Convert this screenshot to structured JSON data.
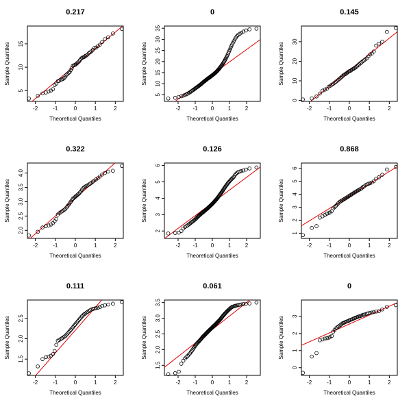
{
  "chart_data": [
    {
      "type": "scatter",
      "title": "0.217",
      "xlabel": "Theoretical Quantiles",
      "ylabel": "Sample Quantiles",
      "xlim": [
        -2.4,
        2.4
      ],
      "ylim": [
        2.7,
        18.8
      ],
      "xticks": [
        -2,
        -1,
        0,
        1,
        2
      ],
      "yticks": [
        5,
        10,
        15
      ],
      "n": 50,
      "sample_quantiles": [
        3.3,
        3.9,
        4.4,
        4.6,
        4.8,
        5.0,
        5.3,
        6.2,
        6.5,
        7.0,
        7.1,
        7.3,
        7.4,
        7.5,
        7.7,
        8.0,
        8.4,
        8.6,
        8.8,
        9.0,
        9.4,
        9.8,
        10.3,
        10.4,
        10.5,
        10.6,
        10.8,
        11.0,
        11.2,
        11.5,
        11.8,
        12.0,
        12.1,
        12.2,
        12.4,
        12.5,
        12.7,
        13.0,
        13.2,
        13.4,
        13.7,
        14.1,
        14.2,
        14.5,
        14.8,
        15.4,
        16.0,
        16.4,
        17.2,
        18.2
      ],
      "qqline": {
        "intercept": 10.4,
        "slope": 3.55
      }
    },
    {
      "type": "scatter",
      "title": "0",
      "xlabel": "Theoretical Quantiles",
      "ylabel": "Sample Quantiles",
      "xlim": [
        -2.8,
        2.8
      ],
      "ylim": [
        2,
        36
      ],
      "xticks": [
        -2,
        -1,
        0,
        1,
        2
      ],
      "yticks": [
        5,
        10,
        15,
        20,
        25,
        30,
        35
      ],
      "n": 100,
      "sample_quantiles": [
        3.3,
        3.6,
        4.0,
        4.3,
        4.6,
        4.9,
        5.2,
        5.5,
        5.8,
        6.1,
        6.4,
        6.7,
        7.0,
        7.2,
        7.5,
        7.7,
        8.0,
        8.2,
        8.4,
        8.6,
        8.8,
        9.0,
        9.2,
        9.4,
        9.6,
        9.8,
        10.0,
        10.2,
        10.4,
        10.6,
        10.8,
        11.0,
        11.1,
        11.3,
        11.5,
        11.6,
        11.8,
        12.0,
        12.1,
        12.3,
        12.4,
        12.6,
        12.7,
        12.8,
        13.0,
        13.1,
        13.3,
        13.4,
        13.6,
        13.7,
        13.9,
        14.0,
        14.2,
        14.3,
        14.5,
        14.7,
        14.8,
        15.0,
        15.2,
        15.4,
        15.6,
        15.8,
        16.0,
        16.3,
        16.5,
        16.8,
        17.0,
        17.3,
        17.6,
        17.9,
        18.2,
        18.5,
        18.8,
        19.2,
        19.6,
        20.0,
        20.4,
        20.9,
        21.4,
        21.9,
        22.5,
        23.1,
        23.8,
        24.5,
        25.2,
        26.0,
        26.8,
        27.6,
        28.4,
        29.2,
        30.0,
        30.8,
        31.5,
        32.0,
        32.5,
        33.0,
        33.5,
        34.0,
        34.5,
        34.8
      ],
      "qqline": {
        "intercept": 14.2,
        "slope": 5.6
      }
    },
    {
      "type": "scatter",
      "title": "0.145",
      "xlabel": "Theoretical Quantiles",
      "ylabel": "Sample Quantiles",
      "xlim": [
        -2.4,
        2.4
      ],
      "ylim": [
        -0.5,
        38
      ],
      "xticks": [
        -2,
        -1,
        0,
        1,
        2
      ],
      "yticks": [
        0,
        10,
        20,
        30
      ],
      "n": 50,
      "sample_quantiles": [
        0.5,
        1.0,
        2.0,
        3.5,
        5.0,
        5.5,
        6.0,
        7.0,
        7.5,
        8.0,
        8.5,
        9.0,
        9.5,
        10.0,
        10.5,
        11.0,
        11.5,
        12.0,
        12.5,
        13.0,
        13.3,
        13.6,
        14.0,
        14.4,
        14.8,
        15.0,
        15.3,
        15.7,
        16.0,
        16.3,
        16.6,
        17.0,
        17.5,
        18.0,
        18.5,
        19.0,
        19.5,
        20.0,
        20.5,
        21.0,
        21.5,
        22.5,
        23.5,
        24.0,
        25.0,
        28.0,
        29.0,
        30.0,
        35.0,
        37.0
      ],
      "qqline": {
        "intercept": 15.4,
        "slope": 8.2
      }
    },
    {
      "type": "scatter",
      "title": "0.322",
      "xlabel": "Theoretical Quantiles",
      "ylabel": "Sample Quantiles",
      "xlim": [
        -2.4,
        2.4
      ],
      "ylim": [
        1.72,
        4.35
      ],
      "xticks": [
        -2,
        -1,
        0,
        1,
        2
      ],
      "yticks": [
        2.0,
        2.5,
        3.0,
        3.5,
        4.0
      ],
      "n": 50,
      "sample_quantiles": [
        1.82,
        1.95,
        2.1,
        2.15,
        2.17,
        2.2,
        2.25,
        2.32,
        2.4,
        2.55,
        2.6,
        2.63,
        2.66,
        2.69,
        2.72,
        2.75,
        2.8,
        2.85,
        2.9,
        2.95,
        3.0,
        3.05,
        3.1,
        3.13,
        3.16,
        3.19,
        3.22,
        3.25,
        3.28,
        3.32,
        3.36,
        3.42,
        3.47,
        3.5,
        3.53,
        3.55,
        3.57,
        3.6,
        3.63,
        3.66,
        3.7,
        3.74,
        3.78,
        3.82,
        3.88,
        3.95,
        4.0,
        4.05,
        4.08,
        4.25
      ],
      "qqline": {
        "intercept": 3.12,
        "slope": 0.62
      }
    },
    {
      "type": "scatter",
      "title": "0.126",
      "xlabel": "Theoretical Quantiles",
      "ylabel": "Sample Quantiles",
      "xlim": [
        -2.8,
        2.8
      ],
      "ylim": [
        1.55,
        6.15
      ],
      "xticks": [
        -2,
        -1,
        0,
        1,
        2
      ],
      "yticks": [
        2,
        3,
        4,
        5,
        6
      ],
      "n": 100,
      "sample_quantiles": [
        1.85,
        1.88,
        1.9,
        2.0,
        2.15,
        2.25,
        2.3,
        2.35,
        2.4,
        2.45,
        2.5,
        2.55,
        2.58,
        2.62,
        2.66,
        2.7,
        2.74,
        2.78,
        2.82,
        2.86,
        2.9,
        2.93,
        2.96,
        2.99,
        3.02,
        3.05,
        3.08,
        3.1,
        3.13,
        3.15,
        3.18,
        3.2,
        3.23,
        3.25,
        3.28,
        3.3,
        3.32,
        3.35,
        3.37,
        3.4,
        3.42,
        3.45,
        3.47,
        3.5,
        3.52,
        3.55,
        3.57,
        3.6,
        3.62,
        3.65,
        3.67,
        3.7,
        3.73,
        3.76,
        3.79,
        3.82,
        3.85,
        3.88,
        3.91,
        3.94,
        3.97,
        4.0,
        4.04,
        4.08,
        4.12,
        4.16,
        4.2,
        4.24,
        4.28,
        4.32,
        4.36,
        4.4,
        4.45,
        4.5,
        4.55,
        4.6,
        4.65,
        4.7,
        4.75,
        4.8,
        4.85,
        4.9,
        4.95,
        5.0,
        5.05,
        5.1,
        5.15,
        5.2,
        5.25,
        5.3,
        5.4,
        5.48,
        5.55,
        5.6,
        5.63,
        5.66,
        5.7,
        5.75,
        5.82,
        5.88
      ],
      "qqline": {
        "intercept": 3.72,
        "slope": 0.78
      }
    },
    {
      "type": "scatter",
      "title": "0.868",
      "xlabel": "Theoretical Quantiles",
      "ylabel": "Sample Quantiles",
      "xlim": [
        -2.4,
        2.4
      ],
      "ylim": [
        0.6,
        6.4
      ],
      "xticks": [
        -2,
        -1,
        0,
        1,
        2
      ],
      "yticks": [
        1,
        2,
        3,
        4,
        5,
        6
      ],
      "n": 50,
      "sample_quantiles": [
        0.85,
        1.4,
        1.55,
        2.2,
        2.3,
        2.4,
        2.5,
        2.55,
        2.6,
        2.7,
        2.9,
        3.0,
        3.1,
        3.2,
        3.3,
        3.4,
        3.45,
        3.5,
        3.55,
        3.6,
        3.65,
        3.7,
        3.75,
        3.8,
        3.85,
        3.9,
        3.95,
        4.0,
        4.05,
        4.1,
        4.15,
        4.2,
        4.25,
        4.3,
        4.35,
        4.4,
        4.45,
        4.55,
        4.6,
        4.7,
        4.75,
        4.8,
        4.85,
        4.9,
        5.0,
        5.2,
        5.3,
        5.5,
        5.9,
        6.1
      ],
      "qqline": {
        "intercept": 3.85,
        "slope": 0.95
      }
    },
    {
      "type": "scatter",
      "title": "0.111",
      "xlabel": "Theoretical Quantiles",
      "ylabel": "Sample Quantiles",
      "xlim": [
        -2.4,
        2.4
      ],
      "ylim": [
        1.1,
        2.95
      ],
      "xticks": [
        -2,
        -1,
        0,
        1,
        2
      ],
      "yticks": [
        1.5,
        2.0,
        2.5
      ],
      "n": 50,
      "sample_quantiles": [
        1.15,
        1.32,
        1.5,
        1.55,
        1.56,
        1.58,
        1.62,
        1.7,
        1.85,
        1.95,
        1.97,
        1.99,
        2.01,
        2.03,
        2.05,
        2.07,
        2.1,
        2.13,
        2.16,
        2.19,
        2.22,
        2.25,
        2.28,
        2.31,
        2.34,
        2.37,
        2.4,
        2.43,
        2.46,
        2.49,
        2.52,
        2.55,
        2.58,
        2.6,
        2.62,
        2.64,
        2.66,
        2.68,
        2.7,
        2.72,
        2.73,
        2.74,
        2.75,
        2.76,
        2.78,
        2.8,
        2.82,
        2.84,
        2.86,
        2.9
      ],
      "qqline": {
        "intercept": 2.21,
        "slope": 0.56
      }
    },
    {
      "type": "scatter",
      "title": "0.061",
      "xlabel": "Theoretical Quantiles",
      "ylabel": "Sample Quantiles",
      "xlim": [
        -2.8,
        2.8
      ],
      "ylim": [
        1.18,
        3.58
      ],
      "xticks": [
        -2,
        -1,
        0,
        1,
        2
      ],
      "yticks": [
        1.5,
        2.0,
        2.5,
        3.0,
        3.5
      ],
      "n": 100,
      "sample_quantiles": [
        1.22,
        1.25,
        1.3,
        1.55,
        1.65,
        1.72,
        1.76,
        1.8,
        1.84,
        1.88,
        1.92,
        1.96,
        2.0,
        2.04,
        2.08,
        2.11,
        2.14,
        2.17,
        2.2,
        2.22,
        2.24,
        2.26,
        2.28,
        2.3,
        2.32,
        2.34,
        2.36,
        2.38,
        2.4,
        2.42,
        2.43,
        2.45,
        2.46,
        2.48,
        2.49,
        2.51,
        2.52,
        2.54,
        2.55,
        2.57,
        2.58,
        2.6,
        2.61,
        2.62,
        2.64,
        2.65,
        2.66,
        2.68,
        2.69,
        2.7,
        2.72,
        2.73,
        2.74,
        2.76,
        2.77,
        2.78,
        2.8,
        2.81,
        2.82,
        2.84,
        2.85,
        2.87,
        2.88,
        2.9,
        2.91,
        2.93,
        2.94,
        2.96,
        2.98,
        3.0,
        3.02,
        3.04,
        3.06,
        3.08,
        3.1,
        3.12,
        3.14,
        3.16,
        3.18,
        3.2,
        3.22,
        3.24,
        3.26,
        3.28,
        3.3,
        3.32,
        3.34,
        3.36,
        3.37,
        3.38,
        3.39,
        3.4,
        3.41,
        3.42,
        3.43,
        3.44,
        3.45,
        3.46,
        3.47,
        3.5
      ],
      "qqline": {
        "intercept": 2.64,
        "slope": 0.43
      }
    },
    {
      "type": "scatter",
      "title": "0",
      "xlabel": "Theoretical Quantiles",
      "ylabel": "Sample Quantiles",
      "xlim": [
        -2.4,
        2.4
      ],
      "ylim": [
        -0.45,
        3.95
      ],
      "xticks": [
        -2,
        -1,
        0,
        1,
        2
      ],
      "yticks": [
        0,
        1,
        2,
        3
      ],
      "n": 50,
      "sample_quantiles": [
        -0.3,
        0.65,
        0.85,
        1.6,
        1.65,
        1.7,
        1.72,
        1.75,
        1.8,
        1.85,
        2.1,
        2.2,
        2.3,
        2.35,
        2.4,
        2.45,
        2.5,
        2.55,
        2.6,
        2.62,
        2.65,
        2.68,
        2.7,
        2.72,
        2.75,
        2.78,
        2.8,
        2.82,
        2.85,
        2.88,
        2.9,
        2.93,
        2.95,
        2.98,
        3.0,
        3.02,
        3.05,
        3.08,
        3.1,
        3.12,
        3.15,
        3.18,
        3.2,
        3.22,
        3.25,
        3.28,
        3.3,
        3.4,
        3.55,
        3.65
      ],
      "qqline": {
        "intercept": 2.55,
        "slope": 0.52
      }
    }
  ]
}
